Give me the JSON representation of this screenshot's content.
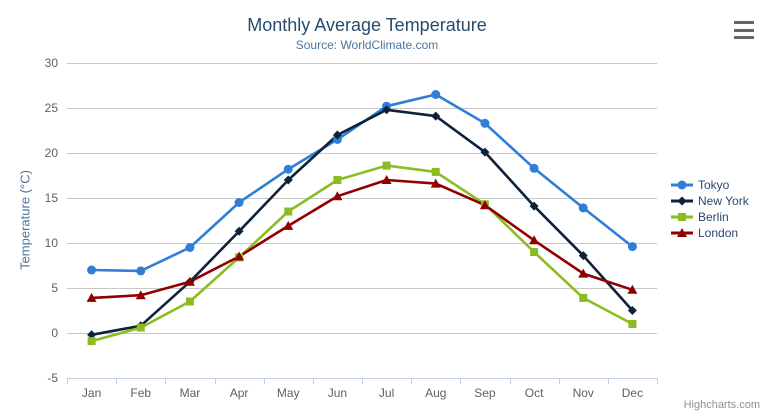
{
  "chart_data": {
    "type": "line",
    "title": "Monthly Average Temperature",
    "subtitle": "Source: WorldClimate.com",
    "ylabel": "Temperature (°C)",
    "xlabel": "",
    "categories": [
      "Jan",
      "Feb",
      "Mar",
      "Apr",
      "May",
      "Jun",
      "Jul",
      "Aug",
      "Sep",
      "Oct",
      "Nov",
      "Dec"
    ],
    "ylim": [
      -5,
      30
    ],
    "ytick_interval": 5,
    "grid": true,
    "legend_position": "right-middle",
    "series": [
      {
        "name": "Tokyo",
        "color": "#2f7ed8",
        "marker": "circle",
        "values": [
          7.0,
          6.9,
          9.5,
          14.5,
          18.2,
          21.5,
          25.2,
          26.5,
          23.3,
          18.3,
          13.9,
          9.6
        ]
      },
      {
        "name": "New York",
        "color": "#0d233a",
        "marker": "diamond",
        "values": [
          -0.2,
          0.8,
          5.7,
          11.3,
          17.0,
          22.0,
          24.8,
          24.1,
          20.1,
          14.1,
          8.6,
          2.5
        ]
      },
      {
        "name": "Berlin",
        "color": "#8bbc21",
        "marker": "square",
        "values": [
          -0.9,
          0.6,
          3.5,
          8.4,
          13.5,
          17.0,
          18.6,
          17.9,
          14.3,
          9.0,
          3.9,
          1.0
        ]
      },
      {
        "name": "London",
        "color": "#910000",
        "marker": "triangle",
        "values": [
          3.9,
          4.2,
          5.7,
          8.5,
          11.9,
          15.2,
          17.0,
          16.6,
          14.2,
          10.3,
          6.6,
          4.8
        ]
      }
    ],
    "credits": "Highcharts.com",
    "colors": {
      "title": "#274b6d",
      "subtitle": "#4d759e",
      "axis_title": "#4d759e",
      "axis_labels": "#606060",
      "gridline": "#c8c8c8",
      "axis_line": "#c0d0e0",
      "legend_text": "#274b6d",
      "credits": "#909090",
      "menu_icon": "#666666",
      "background": "#ffffff"
    }
  }
}
